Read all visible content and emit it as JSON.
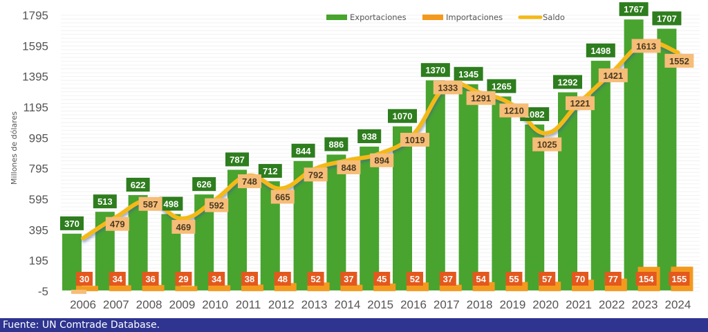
{
  "chart_data": {
    "type": "bar",
    "title": "",
    "xlabel": "",
    "ylabel": "Millones de dólares",
    "ylim": [
      -5,
      1795
    ],
    "yticks": [
      "1795",
      "1595",
      "1395",
      "1195",
      "995",
      "795",
      "595",
      "395",
      "195",
      "-5"
    ],
    "ytick_values": [
      1795,
      1595,
      1395,
      1195,
      995,
      795,
      595,
      395,
      195,
      -5
    ],
    "grid": true,
    "legend_position": "top-right",
    "categories": [
      "2006",
      "2007",
      "2008",
      "2009",
      "2010",
      "2011",
      "2012",
      "2013",
      "2014",
      "2015",
      "2016",
      "2017",
      "2018",
      "2019",
      "2020",
      "2021",
      "2022",
      "2023",
      "2024"
    ],
    "series": [
      {
        "name": "Exportaciones",
        "kind": "bar",
        "color": "#48a42e",
        "label_bg": "#2e7d1e",
        "values": [
          370,
          513,
          622,
          498,
          626,
          787,
          712,
          844,
          886,
          938,
          1070,
          1370,
          1345,
          1265,
          1082,
          1292,
          1498,
          1767,
          1707
        ]
      },
      {
        "name": "Importaciones",
        "kind": "bar",
        "color": "#f39a1e",
        "label_bg": "#e4581e",
        "values": [
          30,
          34,
          36,
          29,
          34,
          38,
          48,
          52,
          37,
          45,
          52,
          37,
          54,
          55,
          57,
          70,
          77,
          154,
          155
        ]
      },
      {
        "name": "Saldo",
        "kind": "line",
        "color": "#f5b914",
        "label_bg": "#f6bd78",
        "values": [
          340,
          479,
          587,
          469,
          592,
          748,
          665,
          792,
          848,
          894,
          1019,
          1333,
          1291,
          1210,
          1025,
          1221,
          1421,
          1613,
          1552
        ],
        "visible_labels": [
          false,
          true,
          true,
          true,
          true,
          true,
          true,
          true,
          true,
          true,
          true,
          true,
          true,
          true,
          true,
          true,
          true,
          true,
          true
        ]
      }
    ]
  },
  "footer": {
    "source": "Fuente: UN Comtrade Database."
  }
}
